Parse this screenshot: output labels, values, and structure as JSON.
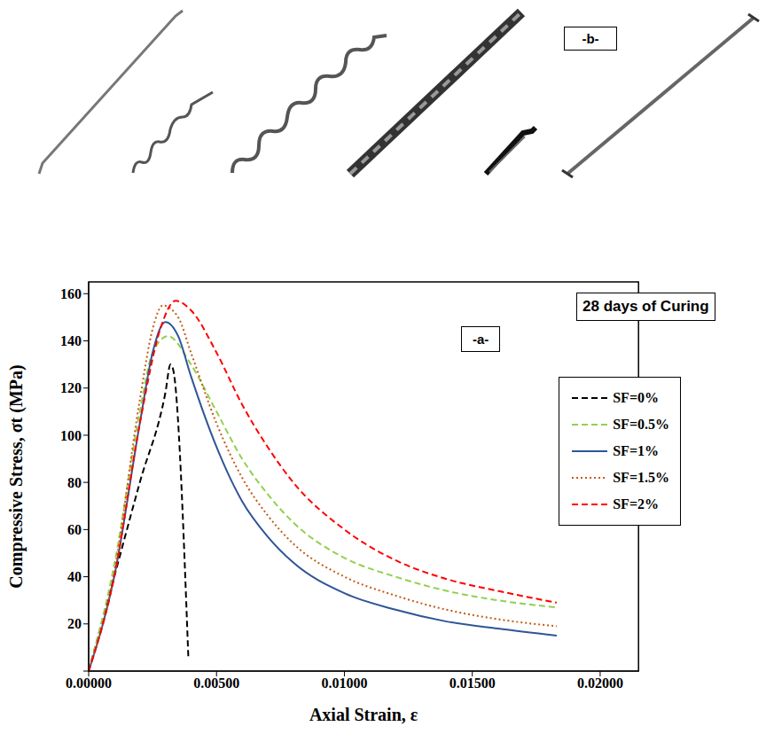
{
  "chart_data": {
    "type": "line",
    "panel_label": "-a-",
    "annotations": [
      "28 days of Curing"
    ],
    "x_label": "Axial Strain, ε",
    "y_label": "Compressive Stress, σt (MPa)",
    "xlim": [
      0,
      0.0215
    ],
    "ylim": [
      0,
      165
    ],
    "xticks": [
      {
        "value": 0,
        "label": "0.00000"
      },
      {
        "value": 0.005,
        "label": "0.00500"
      },
      {
        "value": 0.01,
        "label": "0.01000"
      },
      {
        "value": 0.015,
        "label": "0.01500"
      },
      {
        "value": 0.02,
        "label": "0.02000"
      }
    ],
    "yticks": [
      0,
      20,
      40,
      60,
      80,
      100,
      120,
      140,
      160
    ],
    "grid": false,
    "legend": "upper right",
    "series": [
      {
        "name": "SF=0%",
        "color": "#000000",
        "line_style": "dashed",
        "x": [
          0,
          0.001,
          0.002,
          0.003,
          0.0032,
          0.0033,
          0.0039
        ],
        "values": [
          0,
          40,
          80,
          118,
          130,
          128,
          5
        ]
      },
      {
        "name": "SF=0.5%",
        "color": "#92d050",
        "line_style": "dashed",
        "x": [
          0,
          0.001,
          0.002,
          0.0025,
          0.0031,
          0.004,
          0.005,
          0.006,
          0.007,
          0.008,
          0.01,
          0.012,
          0.014,
          0.016,
          0.0183
        ],
        "values": [
          0,
          45,
          110,
          135,
          142,
          130,
          110,
          90,
          75,
          63,
          48,
          40,
          34,
          30,
          27
        ]
      },
      {
        "name": "SF=1%",
        "color": "#2f5597",
        "line_style": "solid",
        "x": [
          0,
          0.001,
          0.002,
          0.0025,
          0.003,
          0.0035,
          0.004,
          0.005,
          0.006,
          0.007,
          0.008,
          0.01,
          0.012,
          0.014,
          0.016,
          0.0183
        ],
        "values": [
          0,
          40,
          105,
          135,
          148,
          142,
          125,
          95,
          72,
          57,
          46,
          33,
          26,
          21,
          18,
          15
        ]
      },
      {
        "name": "SF=1.5%",
        "color": "#c55a11",
        "line_style": "dotted",
        "x": [
          0,
          0.001,
          0.002,
          0.0025,
          0.0029,
          0.0035,
          0.004,
          0.005,
          0.006,
          0.007,
          0.008,
          0.01,
          0.012,
          0.014,
          0.016,
          0.0183
        ],
        "values": [
          0,
          42,
          115,
          145,
          155,
          150,
          135,
          105,
          82,
          66,
          54,
          40,
          32,
          26,
          22,
          19
        ]
      },
      {
        "name": "SF=2%",
        "color": "#ff0000",
        "line_style": "dashed",
        "x": [
          0,
          0.001,
          0.002,
          0.0028,
          0.0034,
          0.004,
          0.005,
          0.006,
          0.007,
          0.008,
          0.01,
          0.012,
          0.014,
          0.016,
          0.0183
        ],
        "values": [
          0,
          40,
          105,
          145,
          157,
          153,
          135,
          113,
          95,
          80,
          60,
          47,
          39,
          34,
          29
        ]
      }
    ]
  },
  "image_panel": {
    "label": "-b-"
  }
}
